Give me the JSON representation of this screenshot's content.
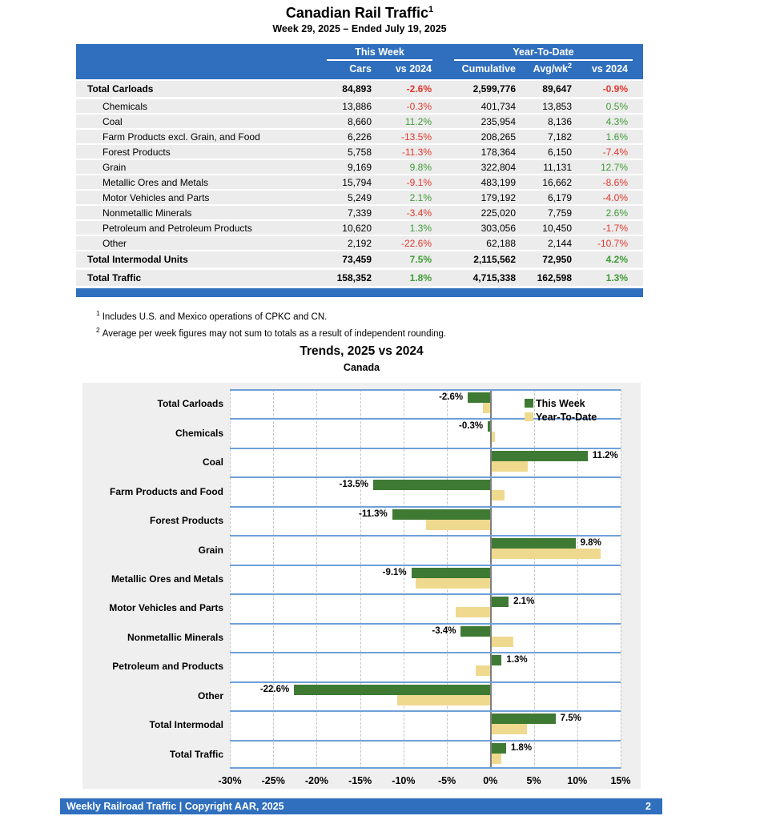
{
  "report": {
    "title": "Canadian Rail Traffic",
    "title_sup": "1",
    "subtitle": "Week 29, 2025 – Ended July 19, 2025"
  },
  "table": {
    "header": {
      "this_week": "This Week",
      "year_to_date": "Year-To-Date",
      "cars": "Cars",
      "vs2024_tw": "vs 2024",
      "cumulative": "Cumulative",
      "avgwk": "Avg/wk",
      "avgwk_sup": "2",
      "vs2024_ytd": "vs 2024"
    },
    "rows": [
      {
        "label": "Total Carloads",
        "cars": "84,893",
        "tw_pct": "-2.6%",
        "cumulative": "2,599,776",
        "avgwk": "89,647",
        "ytd_pct": "-0.9%",
        "bold": true,
        "indent": false
      },
      {
        "label": "Chemicals",
        "cars": "13,886",
        "tw_pct": "-0.3%",
        "cumulative": "401,734",
        "avgwk": "13,853",
        "ytd_pct": "0.5%",
        "bold": false,
        "indent": true
      },
      {
        "label": "Coal",
        "cars": "8,660",
        "tw_pct": "11.2%",
        "cumulative": "235,954",
        "avgwk": "8,136",
        "ytd_pct": "4.3%",
        "bold": false,
        "indent": true
      },
      {
        "label": "Farm Products excl. Grain, and Food",
        "cars": "6,226",
        "tw_pct": "-13.5%",
        "cumulative": "208,265",
        "avgwk": "7,182",
        "ytd_pct": "1.6%",
        "bold": false,
        "indent": true
      },
      {
        "label": "Forest Products",
        "cars": "5,758",
        "tw_pct": "-11.3%",
        "cumulative": "178,364",
        "avgwk": "6,150",
        "ytd_pct": "-7.4%",
        "bold": false,
        "indent": true
      },
      {
        "label": "Grain",
        "cars": "9,169",
        "tw_pct": "9.8%",
        "cumulative": "322,804",
        "avgwk": "11,131",
        "ytd_pct": "12.7%",
        "bold": false,
        "indent": true
      },
      {
        "label": "Metallic Ores and Metals",
        "cars": "15,794",
        "tw_pct": "-9.1%",
        "cumulative": "483,199",
        "avgwk": "16,662",
        "ytd_pct": "-8.6%",
        "bold": false,
        "indent": true
      },
      {
        "label": "Motor Vehicles and Parts",
        "cars": "5,249",
        "tw_pct": "2.1%",
        "cumulative": "179,192",
        "avgwk": "6,179",
        "ytd_pct": "-4.0%",
        "bold": false,
        "indent": true
      },
      {
        "label": "Nonmetallic Minerals",
        "cars": "7,339",
        "tw_pct": "-3.4%",
        "cumulative": "225,020",
        "avgwk": "7,759",
        "ytd_pct": "2.6%",
        "bold": false,
        "indent": true
      },
      {
        "label": "Petroleum and Petroleum Products",
        "cars": "10,620",
        "tw_pct": "1.3%",
        "cumulative": "303,056",
        "avgwk": "10,450",
        "ytd_pct": "-1.7%",
        "bold": false,
        "indent": true
      },
      {
        "label": "Other",
        "cars": "2,192",
        "tw_pct": "-22.6%",
        "cumulative": "62,188",
        "avgwk": "2,144",
        "ytd_pct": "-10.7%",
        "bold": false,
        "indent": true
      },
      {
        "label": "Total Intermodal Units",
        "cars": "73,459",
        "tw_pct": "7.5%",
        "cumulative": "2,115,562",
        "avgwk": "72,950",
        "ytd_pct": "4.2%",
        "bold": true,
        "indent": false
      },
      {
        "label": "Total Traffic",
        "cars": "158,352",
        "tw_pct": "1.8%",
        "cumulative": "4,715,338",
        "avgwk": "162,598",
        "ytd_pct": "1.3%",
        "bold": true,
        "indent": false
      }
    ]
  },
  "footnotes": [
    {
      "sup": "1",
      "text": "Includes U.S. and Mexico operations of CPKC and CN."
    },
    {
      "sup": "2",
      "text": "Average per week figures may not sum to totals as a result of independent rounding."
    }
  ],
  "chart_data": {
    "type": "bar",
    "orientation": "horizontal",
    "title": "Trends, 2025 vs 2024",
    "subtitle": "Canada",
    "categories": [
      "Total Carloads",
      "Chemicals",
      "Coal",
      "Farm Products and Food",
      "Forest Products",
      "Grain",
      "Metallic Ores and Metals",
      "Motor Vehicles and Parts",
      "Nonmetallic Minerals",
      "Petroleum and Products",
      "Other",
      "Total Intermodal",
      "Total Traffic"
    ],
    "series": [
      {
        "name": "This Week",
        "color": "#3E7A33",
        "values": [
          -2.6,
          -0.3,
          11.2,
          -13.5,
          -11.3,
          9.8,
          -9.1,
          2.1,
          -3.4,
          1.3,
          -22.6,
          7.5,
          1.8
        ],
        "labels": [
          "-2.6%",
          "-0.3%",
          "11.2%",
          "-13.5%",
          "-11.3%",
          "9.8%",
          "-9.1%",
          "2.1%",
          "-3.4%",
          "1.3%",
          "-22.6%",
          "7.5%",
          "1.8%"
        ]
      },
      {
        "name": "Year-To-Date",
        "color": "#EFD98E",
        "values": [
          -0.9,
          0.5,
          4.3,
          1.6,
          -7.4,
          12.7,
          -8.6,
          -4.0,
          2.6,
          -1.7,
          -10.7,
          4.2,
          1.3
        ]
      }
    ],
    "xlim": [
      -30,
      15
    ],
    "xticks": [
      -30,
      -25,
      -20,
      -15,
      -10,
      -5,
      0,
      5,
      10,
      15
    ],
    "xtick_labels": [
      "-30%",
      "-25%",
      "-20%",
      "-15%",
      "-10%",
      "-5%",
      "0%",
      "5%",
      "10%",
      "15%"
    ],
    "grid": true,
    "legend_position": "top-right-inside"
  },
  "colors": {
    "header_blue": "#2F6FBE",
    "row_gray": "#ECECEC",
    "neg_red": "#E0382C",
    "pos_green": "#3E9C35",
    "bar_green": "#3E7A33",
    "bar_tan": "#EFD98E",
    "band_line_blue": "#6FA0D8"
  },
  "footer": {
    "left": "Weekly Railroad Traffic | Copyright AAR, 2025",
    "page": "2"
  }
}
